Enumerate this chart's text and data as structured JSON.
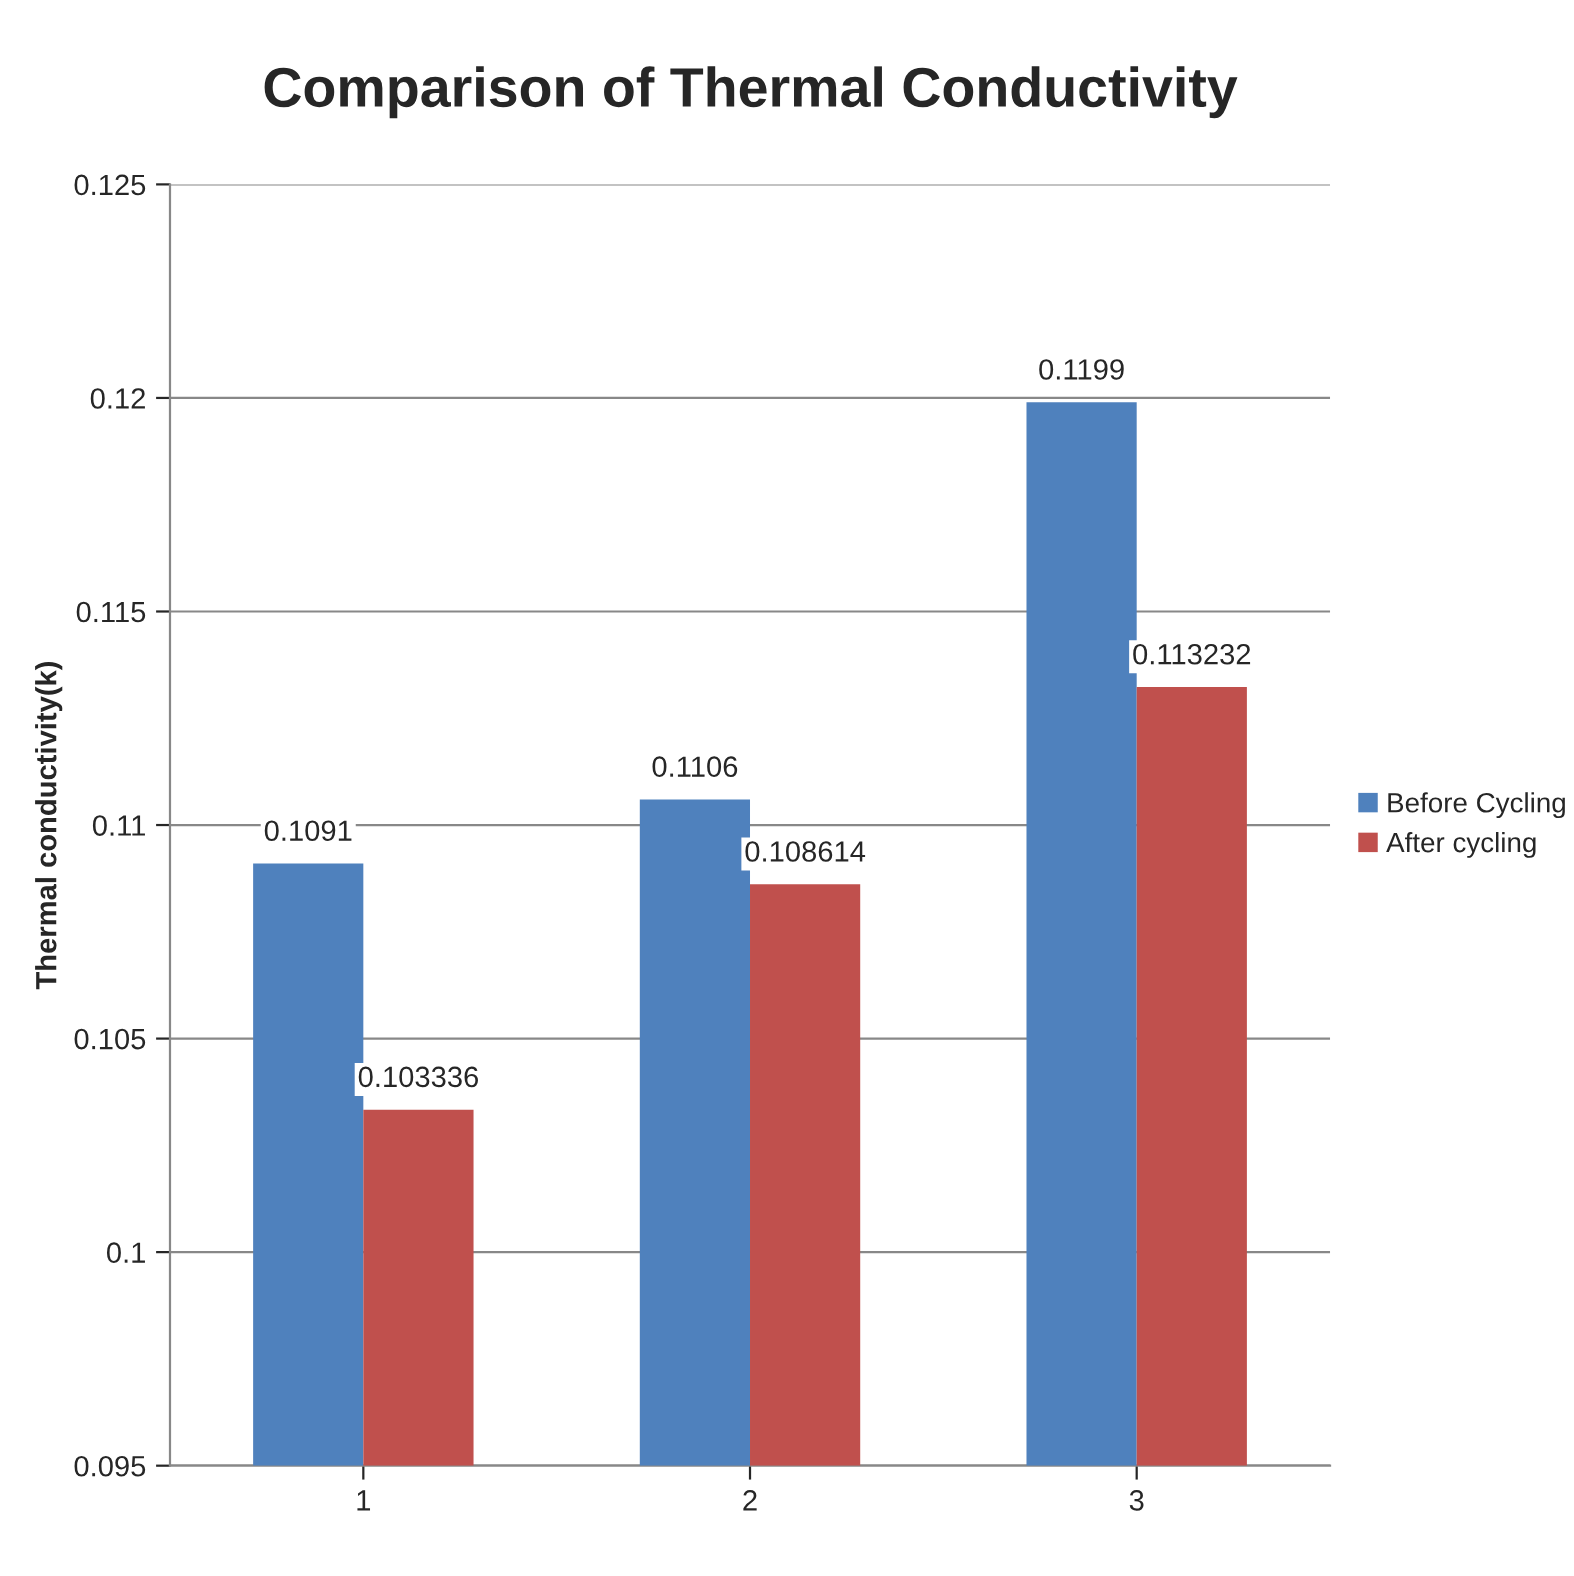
{
  "chart_data": {
    "type": "bar",
    "title": "Comparison of Thermal Conductivity",
    "ylabel": "Thermal conductivity(k)",
    "categories": [
      "1",
      "2",
      "3"
    ],
    "series": [
      {
        "name": "Before Cycling",
        "color": "#4f81bd",
        "values": [
          0.1091,
          0.1106,
          0.1199
        ]
      },
      {
        "name": "After cycling",
        "color": "#c0504d",
        "values": [
          0.103336,
          0.108614,
          0.113232
        ]
      }
    ],
    "ylim": [
      0.095,
      0.125
    ],
    "yticks": [
      0.095,
      0.1,
      0.105,
      0.11,
      0.115,
      0.12,
      0.125
    ],
    "grid": "y",
    "legend": "right",
    "data_labels": true
  }
}
